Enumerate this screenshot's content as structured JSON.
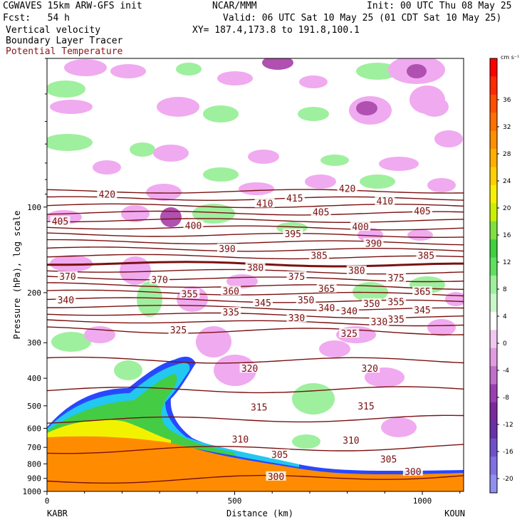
{
  "header": {
    "model": "CGWAVES 15km ARW-GFS init",
    "org": "NCAR/MMM",
    "init": "Init: 00 UTC Thu 08 May 25",
    "fcst": "Fcst:   54 h",
    "valid": "Valid: 06 UTC Sat 10 May 25 (01 CDT Sat 10 May 25)",
    "xy": "XY= 187.4,173.8 to 191.8,100.1",
    "field1": "Vertical velocity",
    "field2": "Boundary Layer Tracer",
    "field3": "Potential Temperature"
  },
  "colors": {
    "theta": "#7a1010",
    "tracer_orange": "#ff8c00",
    "tracer_yellow": "#f2f200",
    "tracer_green": "#44cc44",
    "tracer_cyan": "#22c8f0",
    "tracer_blue": "#2848ff",
    "w_up": "#9ef09e",
    "w_down": "#f0aaf0",
    "w_down_strong": "#b050b0",
    "w_down_max": "#7a2a8a"
  },
  "chart_data": {
    "type": "cross-section",
    "ylabel": "Pressure (hPa), log scale",
    "xlabel": "Distance (km)",
    "y_scale": "log",
    "ylim": [
      1000,
      30
    ],
    "xlim": [
      0,
      1110
    ],
    "y_ticks": [
      100,
      200,
      300,
      400,
      500,
      600,
      700,
      800,
      900,
      1000
    ],
    "x_ticks": [
      0,
      500,
      1000
    ],
    "x_end_labels": {
      "left": "KABR",
      "right": "KOUN"
    },
    "colorbar": {
      "units": "cm s⁻¹",
      "labels": [
        "36",
        "32",
        "28",
        "24",
        "20",
        "16",
        "12",
        "8",
        "4",
        "0",
        "-4",
        "-8",
        "-12",
        "-16",
        "-20"
      ],
      "colors": [
        "#ff0000",
        "#ff2a00",
        "#ff5000",
        "#ff7000",
        "#ff9000",
        "#ffb000",
        "#ffd000",
        "#f8f000",
        "#c8f000",
        "#80e040",
        "#40d040",
        "#60e060",
        "#9ef09e",
        "#c8f8c8",
        "#ffffff",
        "#f0c8f0",
        "#e09ce0",
        "#c070c8",
        "#9a40b0",
        "#7a2a9a",
        "#6a30a8",
        "#7050c8",
        "#8070e0",
        "#9090f0"
      ]
    },
    "theta_labels": [
      {
        "text": "420",
        "x": 160,
        "p": 90
      },
      {
        "text": "405",
        "x": 35,
        "p": 112
      },
      {
        "text": "410",
        "x": 580,
        "p": 97
      },
      {
        "text": "415",
        "x": 660,
        "p": 93
      },
      {
        "text": "420",
        "x": 800,
        "p": 86
      },
      {
        "text": "410",
        "x": 900,
        "p": 95
      },
      {
        "text": "405",
        "x": 1000,
        "p": 103
      },
      {
        "text": "400",
        "x": 390,
        "p": 116
      },
      {
        "text": "405",
        "x": 730,
        "p": 104
      },
      {
        "text": "400",
        "x": 835,
        "p": 117
      },
      {
        "text": "395",
        "x": 655,
        "p": 124
      },
      {
        "text": "390",
        "x": 870,
        "p": 134
      },
      {
        "text": "390",
        "x": 480,
        "p": 140
      },
      {
        "text": "385",
        "x": 725,
        "p": 148
      },
      {
        "text": "385",
        "x": 1010,
        "p": 148
      },
      {
        "text": "380",
        "x": 555,
        "p": 163
      },
      {
        "text": "380",
        "x": 825,
        "p": 167
      },
      {
        "text": "375",
        "x": 665,
        "p": 175
      },
      {
        "text": "375",
        "x": 930,
        "p": 177
      },
      {
        "text": "370",
        "x": 55,
        "p": 175
      },
      {
        "text": "370",
        "x": 300,
        "p": 180
      },
      {
        "text": "365",
        "x": 745,
        "p": 193
      },
      {
        "text": "365",
        "x": 1000,
        "p": 198
      },
      {
        "text": "360",
        "x": 490,
        "p": 197
      },
      {
        "text": "355",
        "x": 380,
        "p": 202
      },
      {
        "text": "355",
        "x": 930,
        "p": 215
      },
      {
        "text": "350",
        "x": 690,
        "p": 212
      },
      {
        "text": "350",
        "x": 865,
        "p": 218
      },
      {
        "text": "345",
        "x": 575,
        "p": 217
      },
      {
        "text": "345",
        "x": 1000,
        "p": 230
      },
      {
        "text": "340",
        "x": 50,
        "p": 212
      },
      {
        "text": "340",
        "x": 745,
        "p": 226
      },
      {
        "text": "340",
        "x": 805,
        "p": 232
      },
      {
        "text": "335",
        "x": 490,
        "p": 234
      },
      {
        "text": "335",
        "x": 930,
        "p": 248
      },
      {
        "text": "330",
        "x": 665,
        "p": 245
      },
      {
        "text": "330",
        "x": 885,
        "p": 253
      },
      {
        "text": "325",
        "x": 350,
        "p": 270
      },
      {
        "text": "325",
        "x": 805,
        "p": 278
      },
      {
        "text": "320",
        "x": 540,
        "p": 369
      },
      {
        "text": "320",
        "x": 860,
        "p": 369
      },
      {
        "text": "315",
        "x": 565,
        "p": 505
      },
      {
        "text": "315",
        "x": 850,
        "p": 500
      },
      {
        "text": "310",
        "x": 515,
        "p": 655
      },
      {
        "text": "310",
        "x": 810,
        "p": 660
      },
      {
        "text": "305",
        "x": 620,
        "p": 740
      },
      {
        "text": "305",
        "x": 910,
        "p": 770
      },
      {
        "text": "300",
        "x": 610,
        "p": 885
      },
      {
        "text": "300",
        "x": 975,
        "p": 850
      }
    ],
    "theta_levels": [
      300,
      305,
      310,
      315,
      320,
      325,
      330,
      335,
      340,
      345,
      350,
      355,
      360,
      365,
      370,
      375,
      380,
      385,
      390,
      395,
      400,
      405,
      410,
      415,
      420
    ]
  }
}
